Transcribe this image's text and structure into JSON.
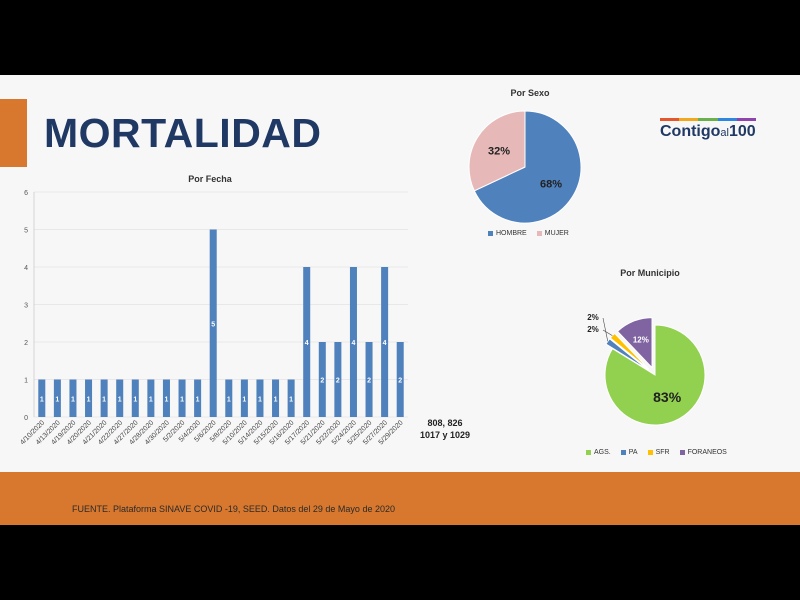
{
  "slide": {
    "title": "MORTALIDAD",
    "logo": {
      "main": "Contigo",
      "mid": "al",
      "num": "100",
      "stripe": [
        "#e4572e",
        "#f2a81d",
        "#6ab04c",
        "#2e86de",
        "#8e44ad"
      ]
    },
    "footer_source": "FUENTE. Plataforma SINAVE COVID -19, SEED. Datos del 29 de Mayo de 2020",
    "note_lines": [
      "808, 826",
      "1017 y 1029"
    ]
  },
  "colors": {
    "bar": "#4f81bd",
    "hombre": "#4f81bd",
    "mujer": "#e6b9b8",
    "ags": "#92d050",
    "pa": "#4f81bd",
    "sfr": "#ffc000",
    "foraneos": "#8064a2",
    "accent": "#d8782e",
    "title": "#1f3864"
  },
  "chart_data": [
    {
      "type": "bar",
      "title": "Por Fecha",
      "categories": [
        "4/10/2020",
        "4/13/2020",
        "4/19/2020",
        "4/20/2020",
        "4/21/2020",
        "4/22/2020",
        "4/27/2020",
        "4/28/2020",
        "4/30/2020",
        "5/2/2020",
        "5/4/2020",
        "5/6/2020",
        "5/8/2020",
        "5/10/2020",
        "5/14/2020",
        "5/15/2020",
        "5/16/2020",
        "5/17/2020",
        "5/21/2020",
        "5/22/2020",
        "5/24/2020",
        "5/25/2020",
        "5/27/2020",
        "5/29/2020"
      ],
      "values": [
        1,
        1,
        1,
        1,
        1,
        1,
        1,
        1,
        1,
        1,
        1,
        5,
        1,
        1,
        1,
        1,
        1,
        4,
        2,
        2,
        4,
        2,
        4,
        2
      ],
      "ylim": [
        0,
        6
      ],
      "yticks": [
        0,
        1,
        2,
        3,
        4,
        5,
        6
      ],
      "grid": true,
      "data_labels": true
    },
    {
      "type": "pie",
      "title": "Por Sexo",
      "labels": [
        "HOMBRE",
        "MUJER"
      ],
      "values": [
        68,
        32
      ],
      "value_labels": [
        "68%",
        "32%"
      ],
      "legend": "bottom"
    },
    {
      "type": "pie",
      "title": "Por Municipio",
      "labels": [
        "AGS.",
        "PA",
        "SFR",
        "FORANEOS"
      ],
      "values": [
        83,
        2,
        2,
        12
      ],
      "value_labels": [
        "83%",
        "2%",
        "2%",
        "12%"
      ],
      "exploded": true,
      "legend": "bottom"
    }
  ]
}
